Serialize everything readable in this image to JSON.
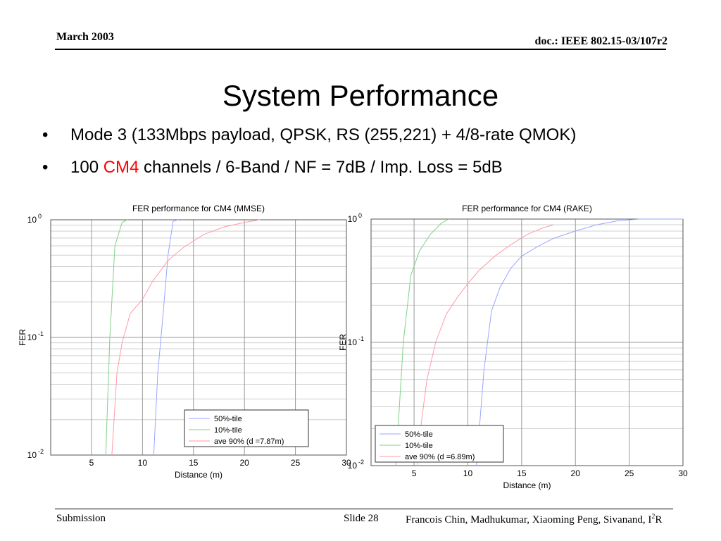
{
  "header": {
    "date": "March 2003",
    "doc_id": "doc.: IEEE 802.15-03/107r2"
  },
  "slide": {
    "title": "System Performance",
    "bullets": [
      {
        "text": "Mode 3 (133Mbps payload, QPSK, RS (255,221) + 4/8-rate QMOK)"
      },
      {
        "prefix": "100 ",
        "highlight": "CM4",
        "suffix": " channels / 6-Band / NF = 7dB / Imp. Loss = 5dB"
      }
    ],
    "bullet_glyph": "•"
  },
  "footer": {
    "left": "Submission",
    "slide_label": "Slide 28",
    "authors": "Francois Chin, Madhukumar, Xiaoming Peng, Sivanand, I",
    "authors_sup": "2",
    "authors_tail": "R"
  },
  "colors": {
    "highlight": "#ff0000",
    "series_50": "#9aa6ff",
    "series_10": "#7fd18a",
    "series_ave": "#ff9aa8",
    "grid": "#cfcfcf",
    "grid_major": "#9a9a9a"
  },
  "chart_data": [
    {
      "type": "line",
      "title": "FER performance for CM4 (MMSE)",
      "xlabel": "Distance (m)",
      "ylabel": "FER",
      "xlim": [
        1,
        30
      ],
      "ylim": [
        0.01,
        1
      ],
      "yscale": "log",
      "x_ticks": [
        5,
        10,
        15,
        20,
        25,
        30
      ],
      "y_ticks": [
        0.01,
        0.1,
        1
      ],
      "y_tick_base": [
        "10",
        "10",
        "10"
      ],
      "y_tick_exp": [
        "-2",
        "-1",
        "0"
      ],
      "grid": true,
      "legend_position": "bottom-right",
      "series": [
        {
          "name": "50%-tile",
          "color": "#9aa6ff",
          "x": [
            11.1,
            11.5,
            12.0,
            12.5,
            13.0,
            13.5
          ],
          "y": [
            0.01,
            0.05,
            0.15,
            0.5,
            0.97,
            1.0
          ]
        },
        {
          "name": "10%-tile",
          "color": "#7fd18a",
          "x": [
            6.4,
            6.8,
            7.3,
            8.0,
            8.5
          ],
          "y": [
            0.01,
            0.1,
            0.6,
            0.95,
            1.0
          ]
        },
        {
          "name": "ave 90% (d =7.87m)",
          "color": "#ff9aa8",
          "x": [
            7.0,
            7.5,
            8.0,
            8.8,
            10.0,
            11.0,
            12.5,
            14.0,
            16.0,
            18.0,
            20.0,
            21.5
          ],
          "y": [
            0.01,
            0.05,
            0.09,
            0.16,
            0.21,
            0.3,
            0.45,
            0.58,
            0.75,
            0.87,
            0.95,
            1.0
          ]
        }
      ]
    },
    {
      "type": "line",
      "title": "FER performance for CM4 (RAKE)",
      "xlabel": "Distance (m)",
      "ylabel": "FER",
      "xlim": [
        1,
        30
      ],
      "ylim": [
        0.01,
        1
      ],
      "yscale": "log",
      "x_ticks": [
        5,
        10,
        15,
        20,
        25,
        30
      ],
      "y_ticks": [
        0.01,
        0.1,
        1
      ],
      "y_tick_base": [
        "10",
        "10",
        "10"
      ],
      "y_tick_exp": [
        "-2",
        "-1",
        "0"
      ],
      "grid": true,
      "legend_position": "bottom-left",
      "series": [
        {
          "name": "50%-tile",
          "color": "#9aa6ff",
          "x": [
            10.8,
            11.5,
            12.2,
            13.0,
            14.0,
            15.0,
            16.5,
            18.0,
            20.0,
            22.0,
            24.0,
            26.0,
            30.0
          ],
          "y": [
            0.01,
            0.06,
            0.18,
            0.28,
            0.4,
            0.5,
            0.6,
            0.7,
            0.8,
            0.9,
            0.97,
            1.0,
            1.0
          ]
        },
        {
          "name": "10%-tile",
          "color": "#7fd18a",
          "x": [
            3.3,
            4.0,
            4.7,
            5.5,
            6.5,
            7.5,
            8.2
          ],
          "y": [
            0.01,
            0.1,
            0.35,
            0.55,
            0.75,
            0.92,
            1.0
          ]
        },
        {
          "name": "ave 90% (d =6.89m)",
          "color": "#ff9aa8",
          "x": [
            5.3,
            5.6,
            6.2,
            7.0,
            8.0,
            9.0,
            10.0,
            11.0,
            12.5,
            14.0,
            15.5,
            17.0,
            18.0
          ],
          "y": [
            0.01,
            0.02,
            0.05,
            0.1,
            0.17,
            0.23,
            0.3,
            0.38,
            0.5,
            0.62,
            0.75,
            0.85,
            0.9
          ]
        }
      ]
    }
  ]
}
